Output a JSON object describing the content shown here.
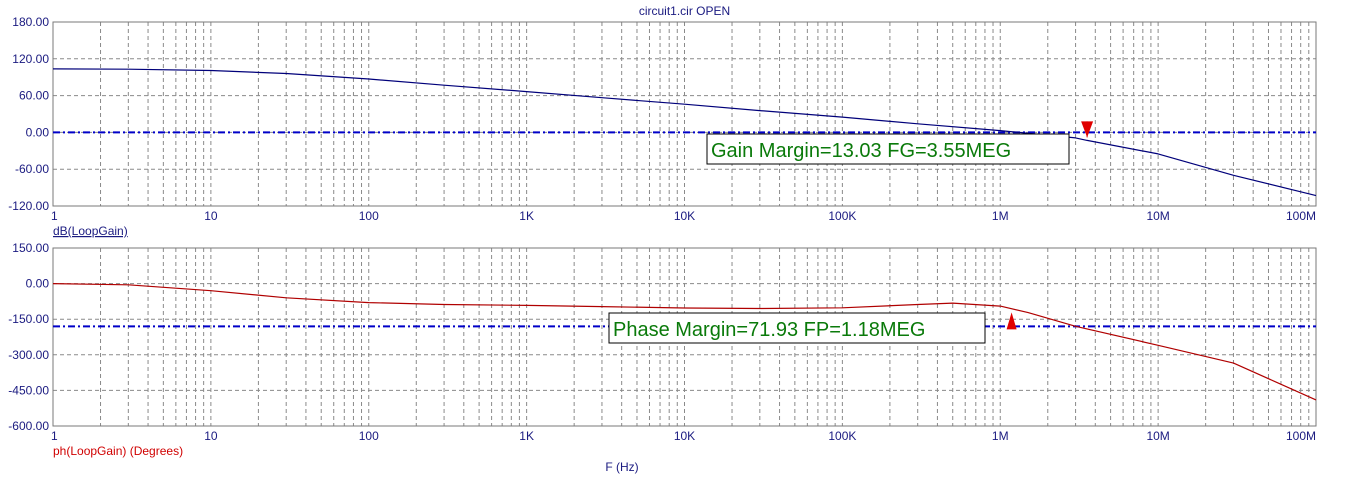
{
  "chart_data": [
    {
      "type": "line",
      "title": "circuit1.cir OPEN",
      "ylabel": "dB(LoopGain)",
      "xlabel": "",
      "xscale": "log",
      "xlim": [
        1,
        100000000
      ],
      "ylim": [
        -120,
        180
      ],
      "yticks": [
        "180.00",
        "120.00",
        "60.00",
        "0.00",
        "-60.00",
        "-120.00"
      ],
      "ytick_values": [
        180,
        120,
        60,
        0,
        -60,
        -120
      ],
      "xticks": [
        "1",
        "10",
        "100",
        "1K",
        "10K",
        "100K",
        "1M",
        "10M",
        "100M"
      ],
      "xtick_values": [
        1,
        10,
        100,
        1000,
        10000,
        100000,
        1000000,
        10000000,
        100000000
      ],
      "grid": true,
      "reference_line": {
        "y": 0,
        "color": "#0000c8"
      },
      "series": [
        {
          "color": "#00007a",
          "x": [
            1,
            3,
            10,
            30,
            100,
            300,
            1000,
            3000,
            10000,
            30000,
            100000,
            300000,
            1000000,
            3000000,
            3550000,
            10000000,
            30000000,
            100000000
          ],
          "y": [
            103.5,
            103,
            101,
            96,
            87,
            77,
            66.5,
            56.5,
            46,
            35.5,
            25,
            14,
            3,
            -9,
            -13,
            -35,
            -70,
            -103
          ]
        }
      ],
      "annotation": {
        "text": "Gain Margin=13.03 FG=3.55MEG",
        "marker_x": 3550000,
        "marker_y": 0,
        "marker_color": "#e00000"
      }
    },
    {
      "type": "line",
      "title": "",
      "ylabel": "ph(LoopGain) (Degrees)",
      "xlabel": "F (Hz)",
      "xscale": "log",
      "xlim": [
        1,
        100000000
      ],
      "ylim": [
        -600,
        150
      ],
      "yticks": [
        "150.00",
        "0.00",
        "-150.00",
        "-300.00",
        "-450.00",
        "-600.00"
      ],
      "ytick_values": [
        150,
        0,
        -150,
        -300,
        -450,
        -600
      ],
      "xticks": [
        "1",
        "10",
        "100",
        "1K",
        "10K",
        "100K",
        "1M",
        "10M",
        "100M"
      ],
      "xtick_values": [
        1,
        10,
        100,
        1000,
        10000,
        100000,
        1000000,
        10000000,
        100000000
      ],
      "grid": true,
      "reference_line": {
        "y": -180,
        "color": "#0000c8"
      },
      "series": [
        {
          "color": "#b00000",
          "x": [
            1,
            3,
            10,
            30,
            100,
            300,
            1000,
            3000,
            10000,
            30000,
            100000,
            300000,
            500000,
            1000000,
            1500000,
            3000000,
            10000000,
            30000000,
            100000000
          ],
          "y": [
            0,
            -5,
            -30,
            -60,
            -80,
            -88,
            -92,
            -97,
            -103,
            -105,
            -102,
            -88,
            -82,
            -95,
            -122,
            -180,
            -260,
            -335,
            -490
          ]
        }
      ],
      "annotation": {
        "text": "Phase Margin=71.93 FP=1.18MEG",
        "marker_x": 1180000,
        "marker_y": -180,
        "marker_color": "#e00000"
      }
    }
  ]
}
